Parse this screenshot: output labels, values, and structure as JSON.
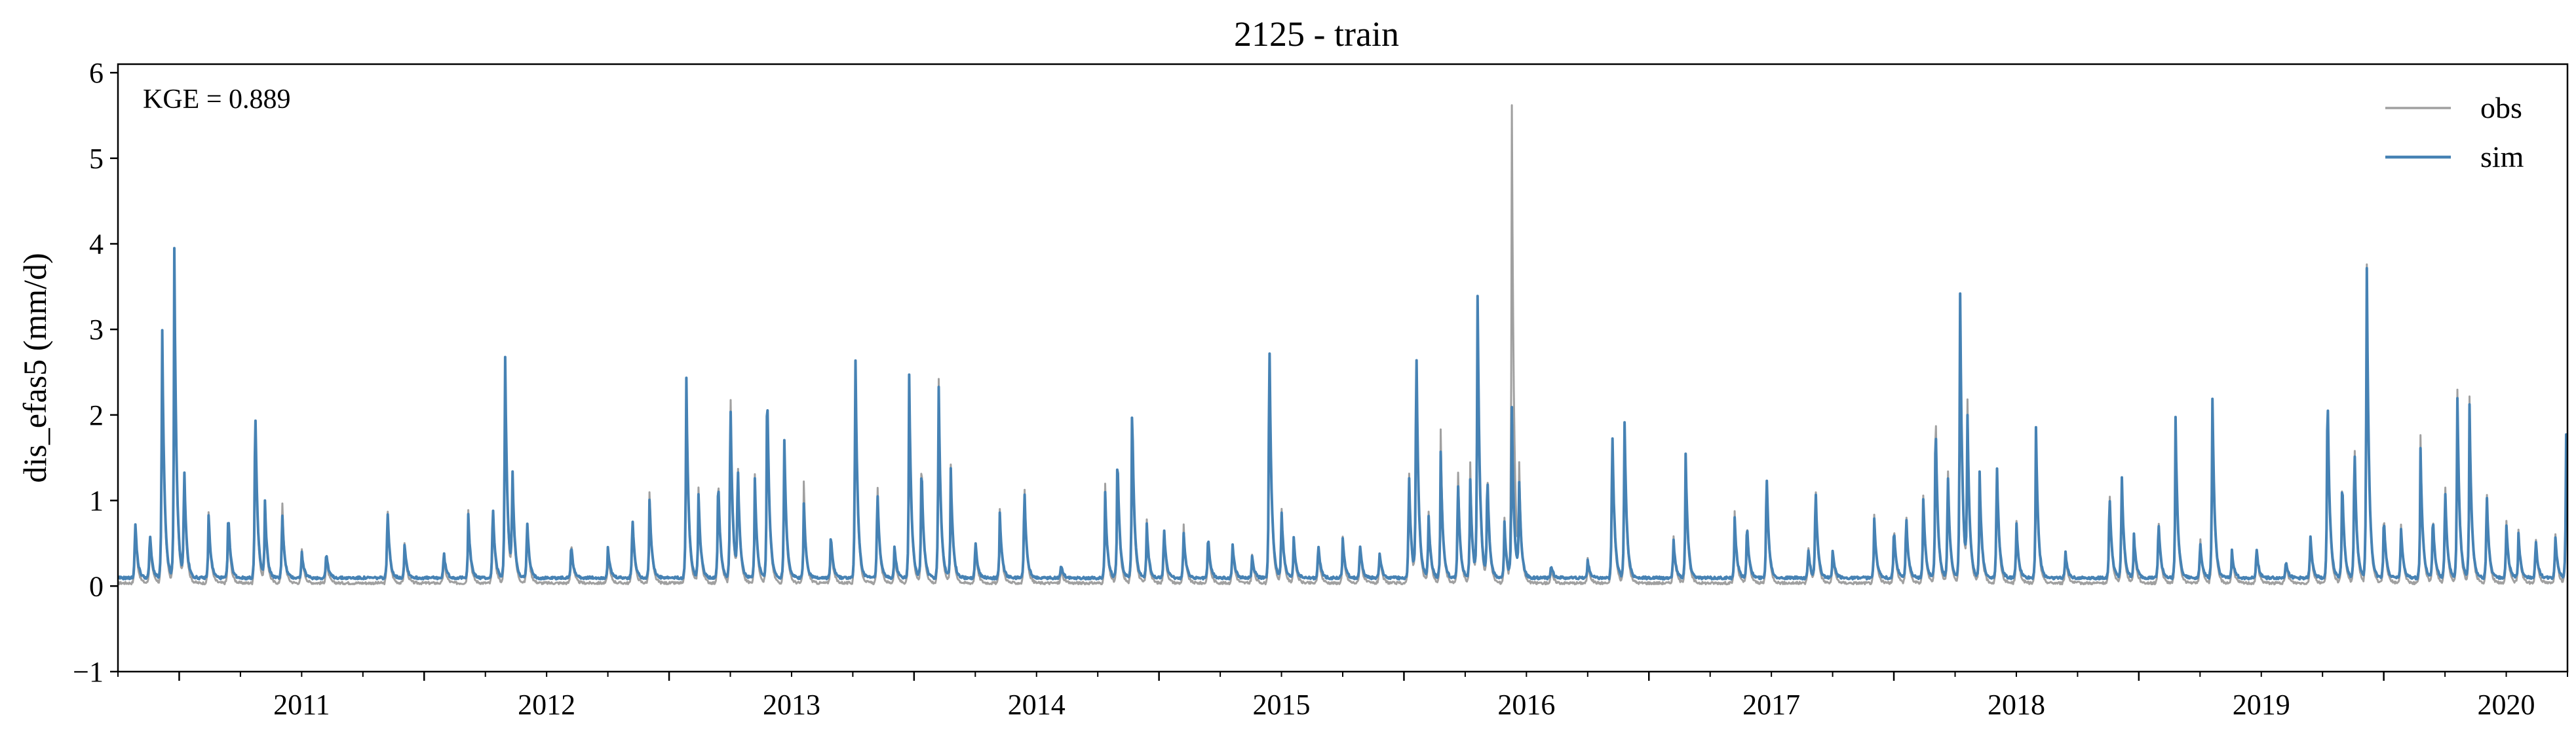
{
  "chart_data": {
    "type": "line",
    "title": "2125 - train",
    "xlabel": "",
    "ylabel": "dis_efas5 (mm/d)",
    "xlim": [
      2010.75,
      2020.75
    ],
    "ylim": [
      -1,
      6.1
    ],
    "yticks": [
      -1,
      0,
      1,
      2,
      3,
      4,
      5,
      6
    ],
    "ytick_labels": [
      "−1",
      "0",
      "1",
      "2",
      "3",
      "4",
      "5",
      "6"
    ],
    "xticks": [
      2011,
      2012,
      2013,
      2014,
      2015,
      2016,
      2017,
      2018,
      2019,
      2020
    ],
    "xtick_labels": [
      "2011",
      "2012",
      "2013",
      "2014",
      "2015",
      "2016",
      "2017",
      "2018",
      "2019",
      "2020"
    ],
    "annotation": "KGE = 0.889",
    "legend_position": "top-right",
    "baseline": {
      "obs": 0.02,
      "sim": 0.08
    },
    "series": [
      {
        "name": "obs",
        "color": "#a0a0a0",
        "peaks": [
          [
            2010.82,
            0.75
          ],
          [
            2010.88,
            0.6
          ],
          [
            2010.93,
            3.2
          ],
          [
            2010.98,
            3.95
          ],
          [
            2011.02,
            1.4
          ],
          [
            2011.12,
            0.9
          ],
          [
            2011.2,
            0.8
          ],
          [
            2011.31,
            2.25
          ],
          [
            2011.35,
            0.95
          ],
          [
            2011.42,
            1.1
          ],
          [
            2011.5,
            0.45
          ],
          [
            2011.6,
            0.35
          ],
          [
            2011.85,
            1.0
          ],
          [
            2011.92,
            0.5
          ],
          [
            2012.08,
            0.35
          ],
          [
            2012.18,
            0.9
          ],
          [
            2012.28,
            0.95
          ],
          [
            2012.33,
            2.85
          ],
          [
            2012.36,
            1.3
          ],
          [
            2012.42,
            0.8
          ],
          [
            2012.6,
            0.55
          ],
          [
            2012.75,
            0.4
          ],
          [
            2012.85,
            0.85
          ],
          [
            2012.92,
            1.15
          ],
          [
            2013.07,
            2.5
          ],
          [
            2013.12,
            1.2
          ],
          [
            2013.2,
            1.4
          ],
          [
            2013.25,
            2.5
          ],
          [
            2013.28,
            1.5
          ],
          [
            2013.35,
            1.3
          ],
          [
            2013.4,
            2.55
          ],
          [
            2013.47,
            1.75
          ],
          [
            2013.55,
            1.2
          ],
          [
            2013.66,
            0.6
          ],
          [
            2013.76,
            2.9
          ],
          [
            2013.85,
            1.3
          ],
          [
            2013.92,
            0.4
          ],
          [
            2013.98,
            2.45
          ],
          [
            2014.03,
            1.6
          ],
          [
            2014.1,
            2.6
          ],
          [
            2014.15,
            1.4
          ],
          [
            2014.25,
            0.5
          ],
          [
            2014.35,
            0.9
          ],
          [
            2014.45,
            1.3
          ],
          [
            2014.6,
            0.2
          ],
          [
            2014.78,
            1.2
          ],
          [
            2014.83,
            1.6
          ],
          [
            2014.89,
            2.15
          ],
          [
            2014.95,
            0.75
          ],
          [
            2015.02,
            0.65
          ],
          [
            2015.1,
            0.75
          ],
          [
            2015.2,
            0.55
          ],
          [
            2015.3,
            0.5
          ],
          [
            2015.38,
            0.35
          ],
          [
            2015.45,
            3.1
          ],
          [
            2015.5,
            0.95
          ],
          [
            2015.55,
            0.55
          ],
          [
            2015.65,
            0.45
          ],
          [
            2015.75,
            0.55
          ],
          [
            2015.82,
            0.5
          ],
          [
            2015.9,
            0.4
          ],
          [
            2016.02,
            1.5
          ],
          [
            2016.05,
            2.95
          ],
          [
            2016.1,
            0.9
          ],
          [
            2016.15,
            1.8
          ],
          [
            2016.22,
            1.5
          ],
          [
            2016.27,
            1.5
          ],
          [
            2016.3,
            3.55
          ],
          [
            2016.34,
            1.4
          ],
          [
            2016.41,
            0.8
          ],
          [
            2016.44,
            5.85
          ],
          [
            2016.47,
            1.3
          ],
          [
            2016.6,
            0.2
          ],
          [
            2016.75,
            0.3
          ],
          [
            2016.85,
            1.95
          ],
          [
            2016.9,
            2.0
          ],
          [
            2017.1,
            0.6
          ],
          [
            2017.15,
            1.5
          ],
          [
            2017.35,
            0.85
          ],
          [
            2017.4,
            0.8
          ],
          [
            2017.48,
            1.4
          ],
          [
            2017.65,
            0.5
          ],
          [
            2017.68,
            1.25
          ],
          [
            2017.75,
            0.4
          ],
          [
            2017.92,
            0.85
          ],
          [
            2018.0,
            0.75
          ],
          [
            2018.05,
            0.9
          ],
          [
            2018.12,
            1.1
          ],
          [
            2018.17,
            2.3
          ],
          [
            2018.22,
            1.5
          ],
          [
            2018.27,
            3.6
          ],
          [
            2018.3,
            2.2
          ],
          [
            2018.35,
            1.3
          ],
          [
            2018.42,
            1.5
          ],
          [
            2018.5,
            0.8
          ],
          [
            2018.58,
            1.85
          ],
          [
            2018.7,
            0.4
          ],
          [
            2018.88,
            1.2
          ],
          [
            2018.93,
            1.3
          ],
          [
            2018.98,
            0.6
          ],
          [
            2019.08,
            0.85
          ],
          [
            2019.15,
            1.95
          ],
          [
            2019.25,
            0.6
          ],
          [
            2019.3,
            2.3
          ],
          [
            2019.38,
            0.4
          ],
          [
            2019.48,
            0.45
          ],
          [
            2019.6,
            0.3
          ],
          [
            2019.7,
            0.6
          ],
          [
            2019.77,
            2.45
          ],
          [
            2019.83,
            1.35
          ],
          [
            2019.88,
            1.85
          ],
          [
            2019.93,
            4.1
          ],
          [
            2020.0,
            0.9
          ],
          [
            2020.07,
            0.75
          ],
          [
            2020.15,
            1.75
          ],
          [
            2020.2,
            0.9
          ],
          [
            2020.25,
            1.3
          ],
          [
            2020.3,
            2.45
          ],
          [
            2020.35,
            2.2
          ],
          [
            2020.42,
            1.2
          ],
          [
            2020.5,
            0.8
          ],
          [
            2020.55,
            0.65
          ],
          [
            2020.62,
            0.6
          ],
          [
            2020.7,
            0.65
          ],
          [
            2020.745,
            2.1
          ]
        ]
      },
      {
        "name": "sim",
        "color": "#4682b4",
        "peaks": [
          [
            2010.82,
            0.8
          ],
          [
            2010.88,
            0.65
          ],
          [
            2010.93,
            3.25
          ],
          [
            2010.98,
            3.98
          ],
          [
            2011.02,
            1.45
          ],
          [
            2011.12,
            0.85
          ],
          [
            2011.2,
            0.9
          ],
          [
            2011.31,
            2.28
          ],
          [
            2011.35,
            0.95
          ],
          [
            2011.42,
            0.9
          ],
          [
            2011.5,
            0.4
          ],
          [
            2011.6,
            0.4
          ],
          [
            2011.85,
            0.95
          ],
          [
            2011.92,
            0.5
          ],
          [
            2012.08,
            0.4
          ],
          [
            2012.18,
            0.85
          ],
          [
            2012.28,
            1.0
          ],
          [
            2012.33,
            2.9
          ],
          [
            2012.36,
            1.35
          ],
          [
            2012.42,
            0.8
          ],
          [
            2012.6,
            0.5
          ],
          [
            2012.75,
            0.45
          ],
          [
            2012.85,
            0.85
          ],
          [
            2012.92,
            1.05
          ],
          [
            2013.07,
            2.55
          ],
          [
            2013.12,
            1.1
          ],
          [
            2013.2,
            1.35
          ],
          [
            2013.25,
            2.35
          ],
          [
            2013.28,
            1.45
          ],
          [
            2013.35,
            1.25
          ],
          [
            2013.4,
            2.55
          ],
          [
            2013.47,
            1.8
          ],
          [
            2013.55,
            0.95
          ],
          [
            2013.66,
            0.6
          ],
          [
            2013.76,
            2.92
          ],
          [
            2013.85,
            1.2
          ],
          [
            2013.92,
            0.45
          ],
          [
            2013.98,
            2.5
          ],
          [
            2014.03,
            1.5
          ],
          [
            2014.1,
            2.5
          ],
          [
            2014.15,
            1.35
          ],
          [
            2014.25,
            0.55
          ],
          [
            2014.35,
            0.85
          ],
          [
            2014.45,
            1.2
          ],
          [
            2014.6,
            0.25
          ],
          [
            2014.78,
            1.1
          ],
          [
            2014.83,
            1.65
          ],
          [
            2014.89,
            2.18
          ],
          [
            2014.95,
            0.7
          ],
          [
            2015.02,
            0.7
          ],
          [
            2015.1,
            0.65
          ],
          [
            2015.2,
            0.6
          ],
          [
            2015.3,
            0.5
          ],
          [
            2015.38,
            0.35
          ],
          [
            2015.45,
            3.12
          ],
          [
            2015.5,
            0.9
          ],
          [
            2015.55,
            0.55
          ],
          [
            2015.65,
            0.5
          ],
          [
            2015.75,
            0.55
          ],
          [
            2015.82,
            0.5
          ],
          [
            2015.9,
            0.4
          ],
          [
            2016.02,
            1.4
          ],
          [
            2016.05,
            3.0
          ],
          [
            2016.1,
            0.85
          ],
          [
            2016.15,
            1.55
          ],
          [
            2016.22,
            1.3
          ],
          [
            2016.27,
            1.3
          ],
          [
            2016.3,
            3.58
          ],
          [
            2016.34,
            1.35
          ],
          [
            2016.41,
            0.75
          ],
          [
            2016.44,
            2.15
          ],
          [
            2016.47,
            1.2
          ],
          [
            2016.6,
            0.25
          ],
          [
            2016.75,
            0.3
          ],
          [
            2016.85,
            1.98
          ],
          [
            2016.9,
            2.02
          ],
          [
            2017.1,
            0.55
          ],
          [
            2017.15,
            1.52
          ],
          [
            2017.35,
            0.8
          ],
          [
            2017.4,
            0.75
          ],
          [
            2017.48,
            1.42
          ],
          [
            2017.65,
            0.45
          ],
          [
            2017.68,
            1.2
          ],
          [
            2017.75,
            0.4
          ],
          [
            2017.92,
            0.8
          ],
          [
            2018.0,
            0.7
          ],
          [
            2018.05,
            0.85
          ],
          [
            2018.12,
            1.05
          ],
          [
            2018.17,
            2.1
          ],
          [
            2018.22,
            1.4
          ],
          [
            2018.27,
            3.62
          ],
          [
            2018.3,
            2.0
          ],
          [
            2018.35,
            1.3
          ],
          [
            2018.42,
            1.55
          ],
          [
            2018.5,
            0.75
          ],
          [
            2018.58,
            1.88
          ],
          [
            2018.7,
            0.4
          ],
          [
            2018.88,
            1.15
          ],
          [
            2018.93,
            1.35
          ],
          [
            2018.98,
            0.6
          ],
          [
            2019.08,
            0.8
          ],
          [
            2019.15,
            1.95
          ],
          [
            2019.25,
            0.55
          ],
          [
            2019.3,
            2.32
          ],
          [
            2019.38,
            0.4
          ],
          [
            2019.48,
            0.45
          ],
          [
            2019.6,
            0.3
          ],
          [
            2019.7,
            0.6
          ],
          [
            2019.77,
            2.48
          ],
          [
            2019.83,
            1.3
          ],
          [
            2019.88,
            1.75
          ],
          [
            2019.93,
            4.05
          ],
          [
            2020.0,
            0.85
          ],
          [
            2020.07,
            0.7
          ],
          [
            2020.15,
            1.6
          ],
          [
            2020.2,
            0.85
          ],
          [
            2020.25,
            1.2
          ],
          [
            2020.3,
            2.35
          ],
          [
            2020.35,
            2.1
          ],
          [
            2020.42,
            1.15
          ],
          [
            2020.5,
            0.75
          ],
          [
            2020.55,
            0.6
          ],
          [
            2020.62,
            0.55
          ],
          [
            2020.7,
            0.6
          ],
          [
            2020.745,
            2.12
          ]
        ]
      }
    ]
  }
}
